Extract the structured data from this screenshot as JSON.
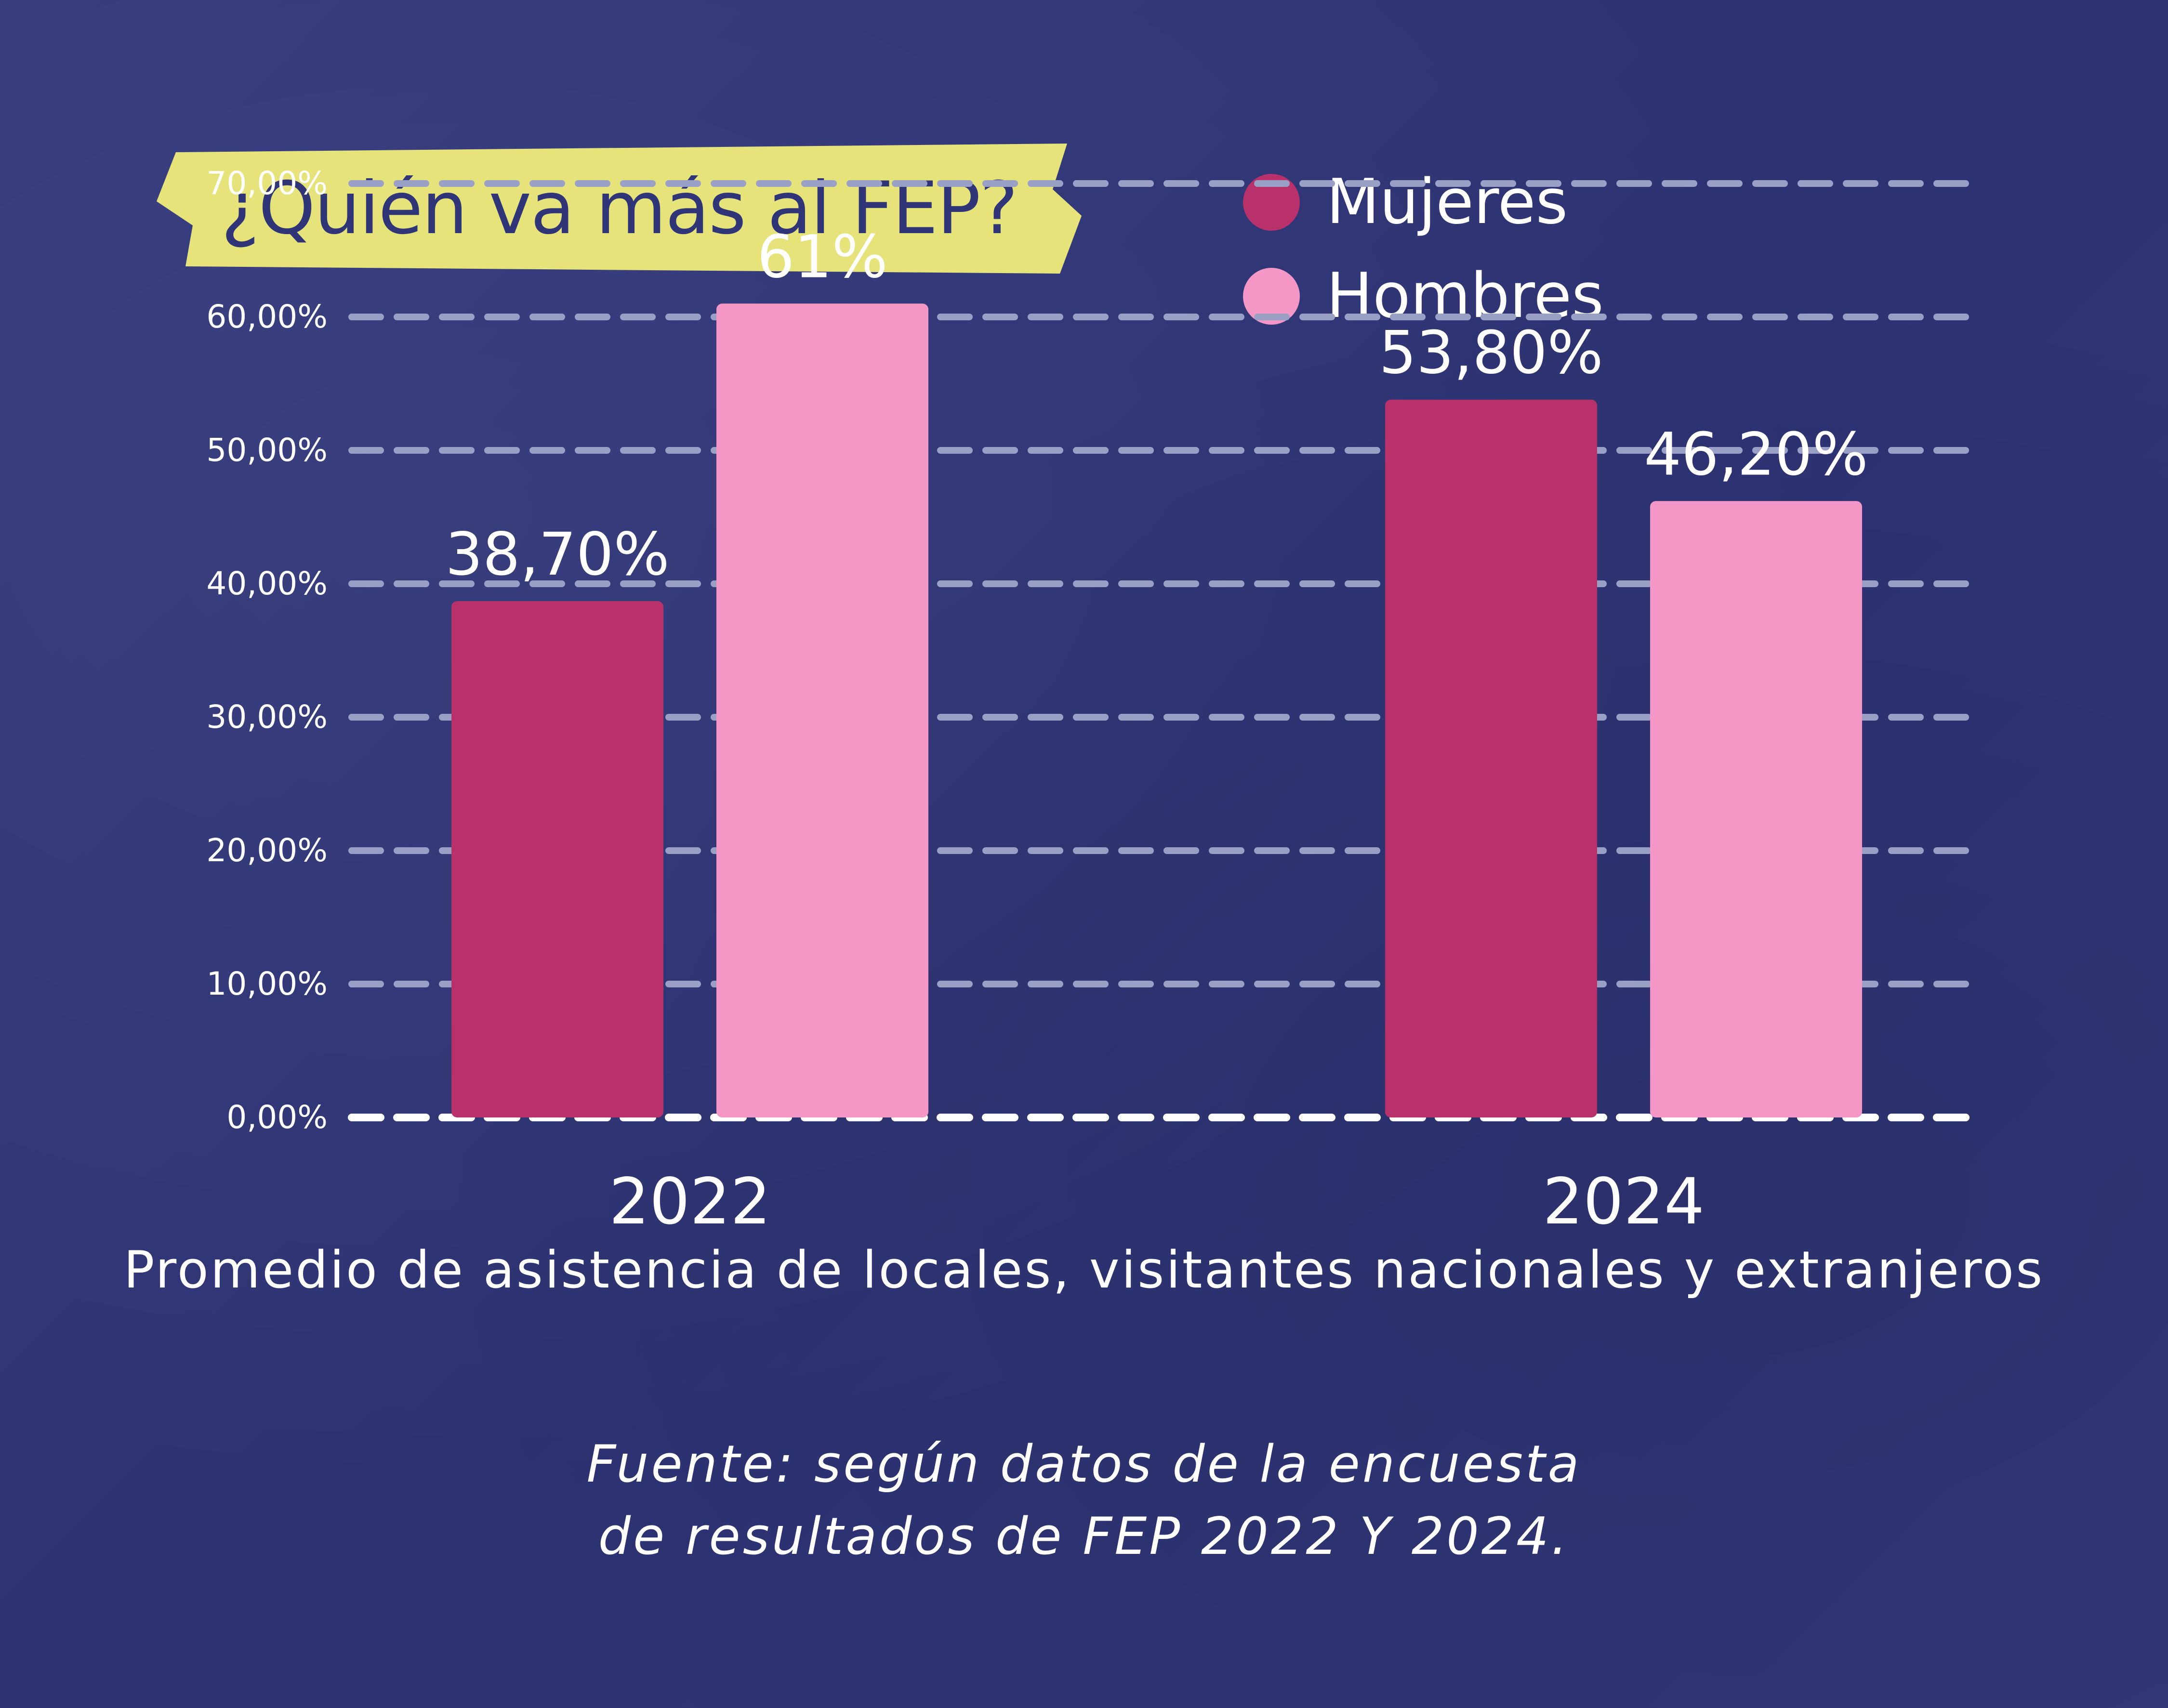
{
  "chart_data": {
    "type": "bar",
    "title": "¿Quién va más al FEP?",
    "categories": [
      "2022",
      "2024"
    ],
    "series": [
      {
        "name": "Mujeres",
        "color": "#b9316b",
        "values": [
          38.7,
          53.8
        ],
        "labels": [
          "38,70%",
          "53,80%"
        ]
      },
      {
        "name": "Hombres",
        "color": "#f597c6",
        "values": [
          61,
          46.2
        ],
        "labels": [
          "61%",
          "46,20%"
        ]
      }
    ],
    "ylim": [
      0,
      70
    ],
    "yticks": [
      0,
      10,
      20,
      30,
      40,
      50,
      60,
      70
    ],
    "ytick_labels": [
      "0,00%",
      "10,00%",
      "20,00%",
      "30,00%",
      "40,00%",
      "50,00%",
      "60,00%",
      "70,00%"
    ],
    "xlabel": "Promedio de asistencia de locales, visitantes nacionales y extranjeros",
    "ylabel": "",
    "grid": true,
    "legend": "top-right"
  },
  "source": {
    "line1": "Fuente: según datos de la encuesta",
    "line2": "de resultados de FEP 2022 Y 2024."
  },
  "colors": {
    "background": "#2f3576",
    "title_banner": "#e6e37b",
    "gridline": "#9a9fc6",
    "baseline": "#ffffff"
  }
}
